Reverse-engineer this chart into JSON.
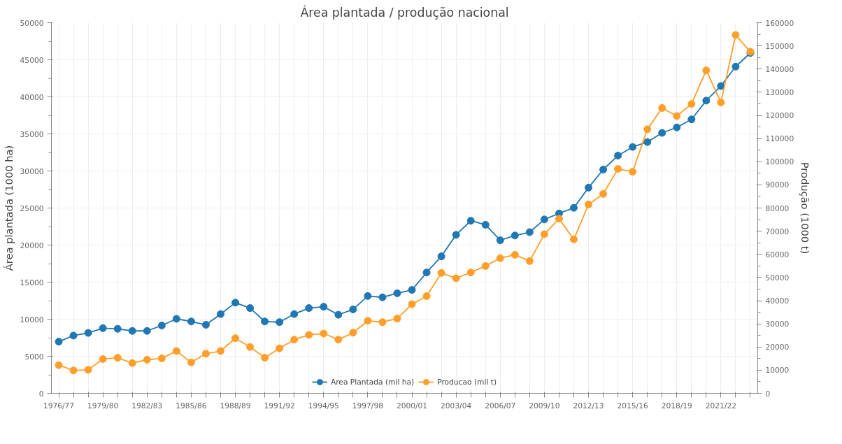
{
  "chart_data": {
    "type": "line",
    "title": "Área plantada / produção nacional",
    "ylabel": "Área plantada (1000 ha)",
    "y2label": "Produção (1000 t)",
    "categories": [
      "1976/77",
      null,
      null,
      "1979/80",
      null,
      null,
      "1982/83",
      null,
      null,
      "1985/86",
      null,
      null,
      "1988/89",
      null,
      null,
      "1991/92",
      null,
      null,
      "1994/95",
      null,
      null,
      "1997/98",
      null,
      null,
      "2000/01",
      null,
      null,
      "2003/04",
      null,
      null,
      "2006/07",
      null,
      null,
      "2009/10",
      null,
      null,
      "2012/13",
      null,
      null,
      "2015/16",
      null,
      null,
      "2018/19",
      null,
      null,
      "2021/22",
      null,
      null
    ],
    "ylim": [
      0,
      50000
    ],
    "yticks": [
      0,
      5000,
      10000,
      15000,
      20000,
      25000,
      30000,
      35000,
      40000,
      45000,
      50000
    ],
    "y2lim": [
      0,
      160000
    ],
    "y2ticks": [
      0,
      10000,
      20000,
      30000,
      40000,
      50000,
      60000,
      70000,
      80000,
      90000,
      100000,
      110000,
      120000,
      130000,
      140000,
      150000,
      160000
    ],
    "grid": true,
    "legend": "bottom",
    "marker": "circle",
    "line_style": "solid",
    "series": [
      {
        "name": "Area Plantada (mil ha)",
        "color": "#1f77b4",
        "values": [
          6970,
          7790,
          8150,
          8790,
          8700,
          8420,
          8420,
          9150,
          10050,
          9690,
          9240,
          10690,
          12230,
          11500,
          9690,
          9600,
          10690,
          11500,
          11680,
          10600,
          11320,
          13130,
          12950,
          13500,
          13950,
          16300,
          18480,
          21380,
          23280,
          22740,
          20650,
          21290,
          21740,
          23460,
          24270,
          25030,
          27750,
          30190,
          32070,
          33240,
          33900,
          35140,
          35870,
          36960,
          39490,
          41460,
          44080,
          45920
        ]
      },
      {
        "name": "Producao (mil t)",
        "color": "#ff9f2a",
        "axis": "y2",
        "values": [
          12170,
          9860,
          10140,
          14780,
          15360,
          13040,
          14490,
          15070,
          18260,
          13330,
          17100,
          18260,
          23770,
          20000,
          15360,
          19420,
          23190,
          25220,
          25800,
          23190,
          26170,
          31300,
          30720,
          32260,
          38460,
          41940,
          51970,
          49650,
          52170,
          54980,
          58350,
          59800,
          57100,
          68700,
          75360,
          66470,
          81540,
          86090,
          96900,
          95650,
          114000,
          123190,
          119710,
          124930,
          139420,
          125600,
          154700,
          147450
        ]
      }
    ]
  }
}
